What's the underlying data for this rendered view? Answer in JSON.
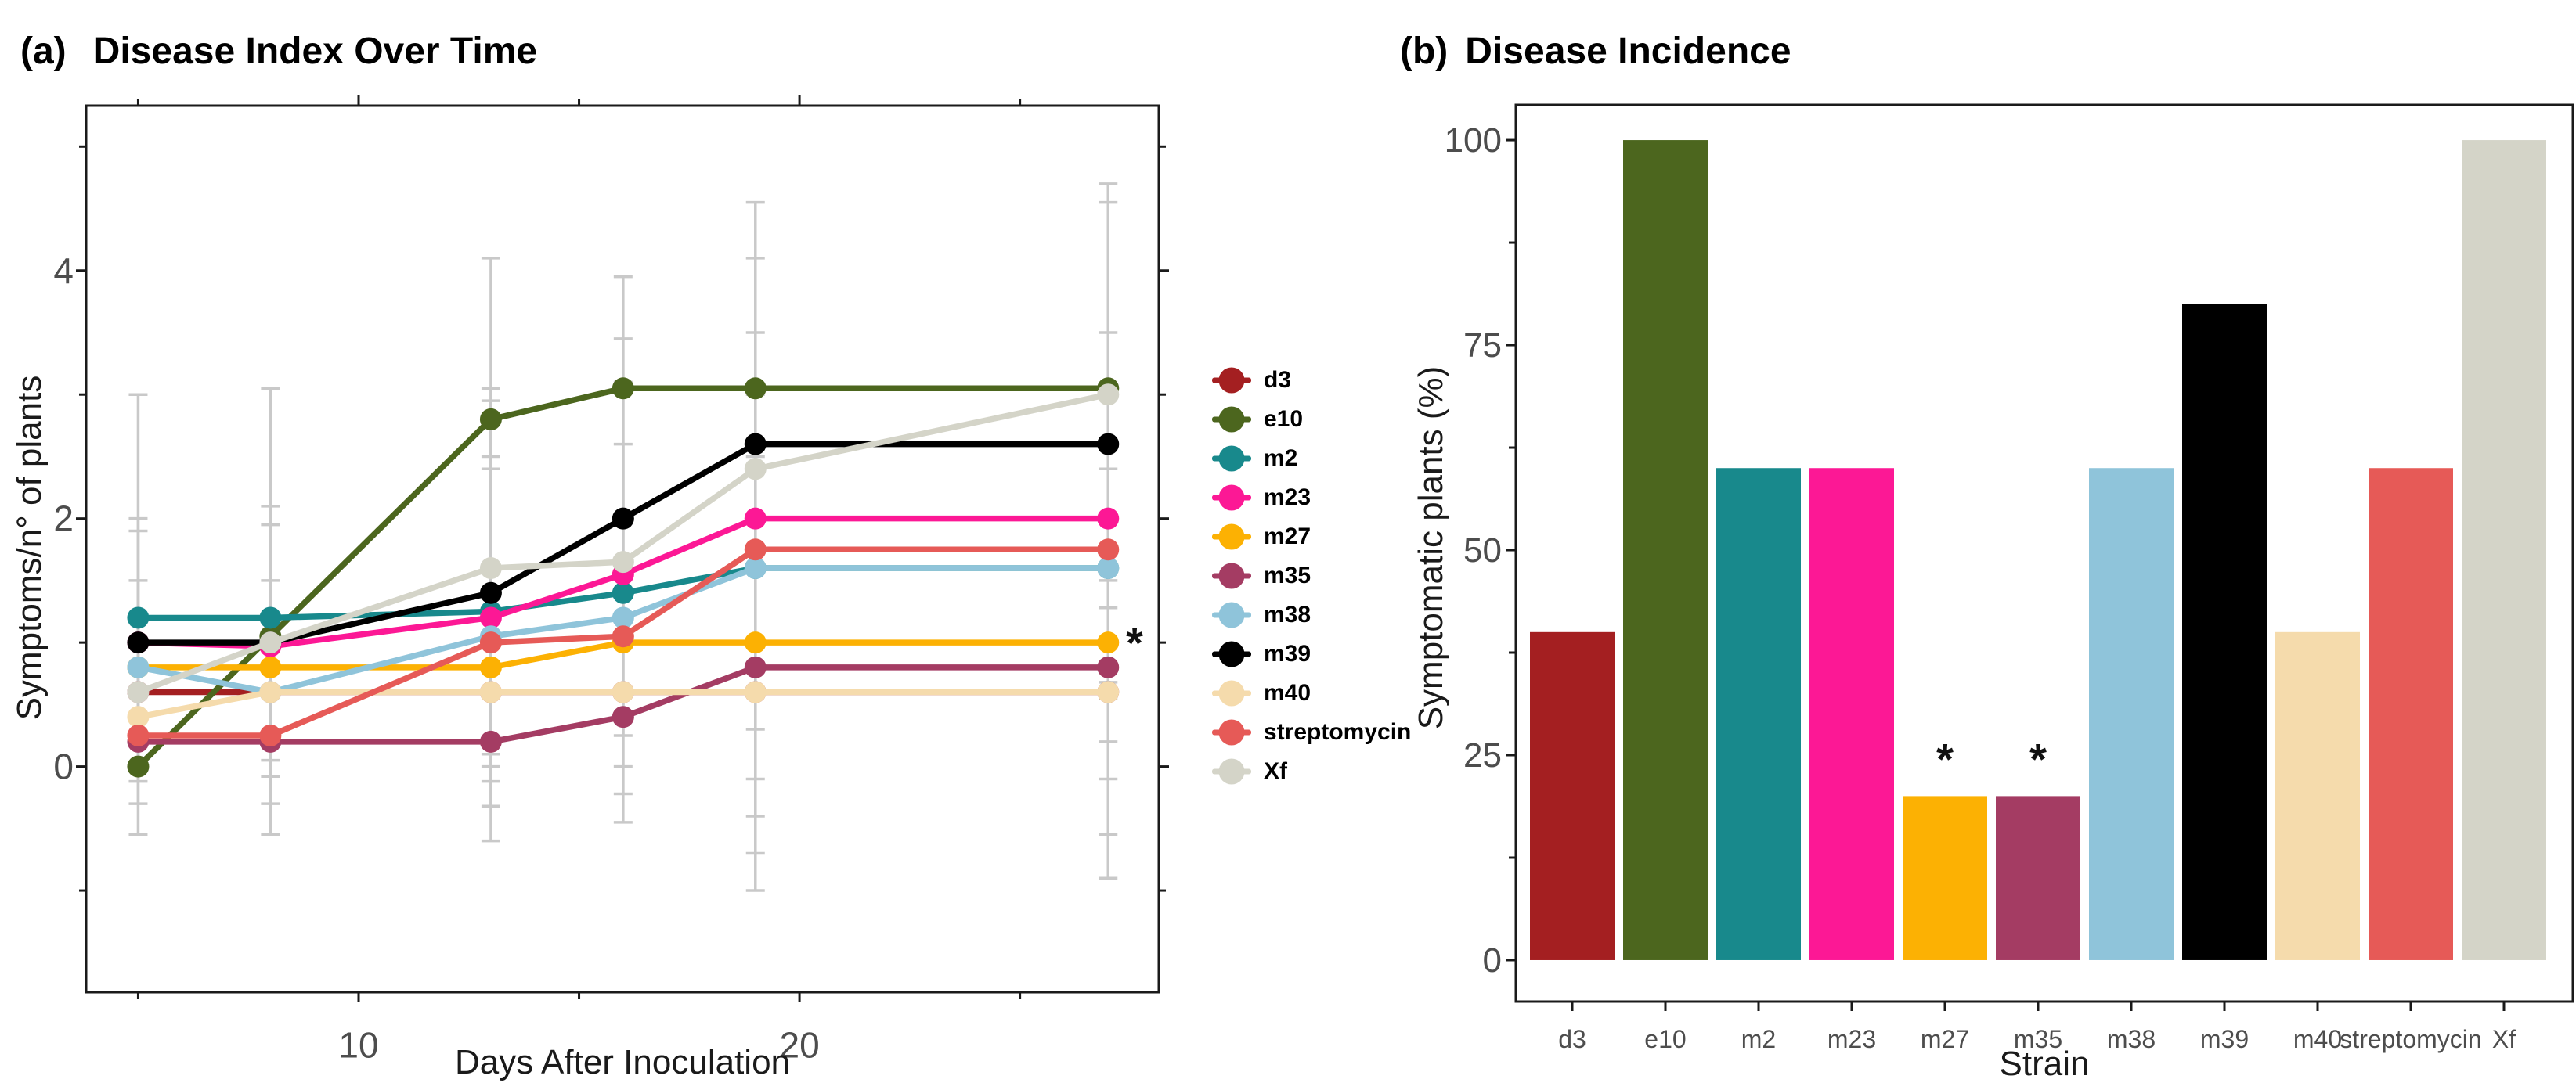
{
  "colors": {
    "background": "#ffffff",
    "axis_line": "#1a1a1a",
    "axis_text": "#4d4d4d",
    "error_bar": "#c9c9c9",
    "annotation": "#111111"
  },
  "legend": {
    "items": [
      {
        "label": "d3",
        "color": "#a41f21"
      },
      {
        "label": "e10",
        "color": "#4c661e"
      },
      {
        "label": "m2",
        "color": "#18898c"
      },
      {
        "label": "m23",
        "color": "#fc1895"
      },
      {
        "label": "m27",
        "color": "#fcb103"
      },
      {
        "label": "m35",
        "color": "#a43c63"
      },
      {
        "label": "m38",
        "color": "#8fc4da"
      },
      {
        "label": "m39",
        "color": "#000000"
      },
      {
        "label": "m40",
        "color": "#f5dbac"
      },
      {
        "label": "streptomycin",
        "color": "#e65a57"
      },
      {
        "label": "Xf",
        "color": "#d4d4c8"
      }
    ]
  },
  "chart_data": [
    {
      "type": "line",
      "panel_tag": "(a)",
      "title": "Disease Index Over Time",
      "xlabel": "Days After Inoculation",
      "ylabel": "Symptoms/n° of plants",
      "x": [
        5,
        8,
        13,
        16,
        19,
        27
      ],
      "xlim": [
        3.82,
        28.15
      ],
      "ylim": [
        -1.82,
        5.33
      ],
      "xticks": {
        "major": [
          10,
          20
        ],
        "minor": [
          5,
          15,
          25
        ],
        "mirror": true
      },
      "yticks": {
        "major": [
          0,
          2,
          4
        ],
        "minor": [
          -1,
          1,
          3,
          5
        ],
        "mirror": true
      },
      "series": [
        {
          "name": "d3",
          "color": "#a41f21",
          "values": [
            0.6,
            0.6,
            0.6,
            0.6,
            0.6,
            0.6
          ]
        },
        {
          "name": "e10",
          "color": "#4c661e",
          "values": [
            0.0,
            1.05,
            2.8,
            3.05,
            3.05,
            3.05
          ]
        },
        {
          "name": "m2",
          "color": "#18898c",
          "values": [
            1.2,
            1.2,
            1.25,
            1.4,
            1.6,
            1.6
          ]
        },
        {
          "name": "m23",
          "color": "#fc1895",
          "values": [
            1.0,
            0.97,
            1.2,
            1.55,
            2.0,
            2.0
          ]
        },
        {
          "name": "m27",
          "color": "#fcb103",
          "values": [
            0.8,
            0.8,
            0.8,
            1.0,
            1.0,
            1.0
          ]
        },
        {
          "name": "m35",
          "color": "#a43c63",
          "values": [
            0.2,
            0.2,
            0.2,
            0.4,
            0.8,
            0.8
          ]
        },
        {
          "name": "m38",
          "color": "#8fc4da",
          "values": [
            0.8,
            0.6,
            1.05,
            1.2,
            1.6,
            1.6
          ]
        },
        {
          "name": "m39",
          "color": "#000000",
          "values": [
            1.0,
            1.0,
            1.4,
            2.0,
            2.6,
            2.6
          ]
        },
        {
          "name": "m40",
          "color": "#f5dbac",
          "values": [
            0.4,
            0.6,
            0.6,
            0.6,
            0.6,
            0.6
          ]
        },
        {
          "name": "streptomycin",
          "color": "#e65a57",
          "values": [
            0.25,
            0.25,
            1.0,
            1.05,
            1.75,
            1.75
          ]
        },
        {
          "name": "Xf",
          "color": "#d4d4c8",
          "values": [
            0.6,
            1.0,
            1.6,
            1.65,
            2.4,
            3.0
          ]
        }
      ],
      "error_bars": [
        {
          "x": 5,
          "lo": -0.55,
          "hi": 3.0
        },
        {
          "x": 5,
          "lo": -0.3,
          "hi": 2.0
        },
        {
          "x": 5,
          "lo": -0.12,
          "hi": 1.9
        },
        {
          "x": 5,
          "lo": 0.02,
          "hi": 1.5
        },
        {
          "x": 8,
          "lo": -0.55,
          "hi": 3.05
        },
        {
          "x": 8,
          "lo": -0.3,
          "hi": 2.1
        },
        {
          "x": 8,
          "lo": -0.08,
          "hi": 1.95
        },
        {
          "x": 8,
          "lo": 0.05,
          "hi": 1.5
        },
        {
          "x": 13,
          "lo": -0.6,
          "hi": 4.1
        },
        {
          "x": 13,
          "lo": -0.32,
          "hi": 3.05
        },
        {
          "x": 13,
          "lo": -0.12,
          "hi": 2.95
        },
        {
          "x": 13,
          "lo": 0.0,
          "hi": 2.5
        },
        {
          "x": 13,
          "lo": 0.1,
          "hi": 2.4
        },
        {
          "x": 16,
          "lo": -0.45,
          "hi": 3.95
        },
        {
          "x": 16,
          "lo": -0.22,
          "hi": 3.45
        },
        {
          "x": 16,
          "lo": 0.0,
          "hi": 3.1
        },
        {
          "x": 16,
          "lo": 0.25,
          "hi": 2.6
        },
        {
          "x": 19,
          "lo": -1.0,
          "hi": 4.55
        },
        {
          "x": 19,
          "lo": -0.7,
          "hi": 4.1
        },
        {
          "x": 19,
          "lo": -0.4,
          "hi": 3.5
        },
        {
          "x": 19,
          "lo": -0.1,
          "hi": 3.0
        },
        {
          "x": 19,
          "lo": 0.3,
          "hi": 2.5
        },
        {
          "x": 27,
          "lo": -0.9,
          "hi": 4.7
        },
        {
          "x": 27,
          "lo": -0.55,
          "hi": 4.55
        },
        {
          "x": 27,
          "lo": -0.1,
          "hi": 3.5
        },
        {
          "x": 27,
          "lo": 0.2,
          "hi": 3.05
        },
        {
          "x": 27,
          "lo": 0.55,
          "hi": 2.4
        },
        {
          "x": 27,
          "lo": 0.62,
          "hi": 1.5
        },
        {
          "x": 27,
          "lo": 0.68,
          "hi": 1.28
        }
      ],
      "annotations": [
        {
          "text": "*",
          "x": 27.6,
          "y": 1.0
        }
      ]
    },
    {
      "type": "bar",
      "panel_tag": "(b)",
      "title": "Disease Incidence",
      "xlabel": "Strain",
      "ylabel": "Symptomatic plants (%)",
      "categories": [
        "d3",
        "e10",
        "m2",
        "m23",
        "m27",
        "m35",
        "m38",
        "m39",
        "m40",
        "streptomycin",
        "Xf"
      ],
      "values": [
        40,
        100,
        60,
        60,
        20,
        20,
        60,
        80,
        40,
        60,
        100
      ],
      "bar_colors": [
        "#a41f21",
        "#4c661e",
        "#18898c",
        "#fc1895",
        "#fcb103",
        "#a43c63",
        "#8fc4da",
        "#000000",
        "#f5dbac",
        "#e65a57",
        "#d4d4c8"
      ],
      "ylim": [
        -5.06,
        104.3
      ],
      "yticks": {
        "major": [
          0,
          25,
          50,
          75,
          100
        ],
        "minor": [
          12.5,
          37.5,
          62.5,
          87.5
        ]
      },
      "annotations": [
        {
          "text": "*",
          "category": "m27",
          "y": 24
        },
        {
          "text": "*",
          "category": "m35",
          "y": 24
        }
      ]
    }
  ]
}
